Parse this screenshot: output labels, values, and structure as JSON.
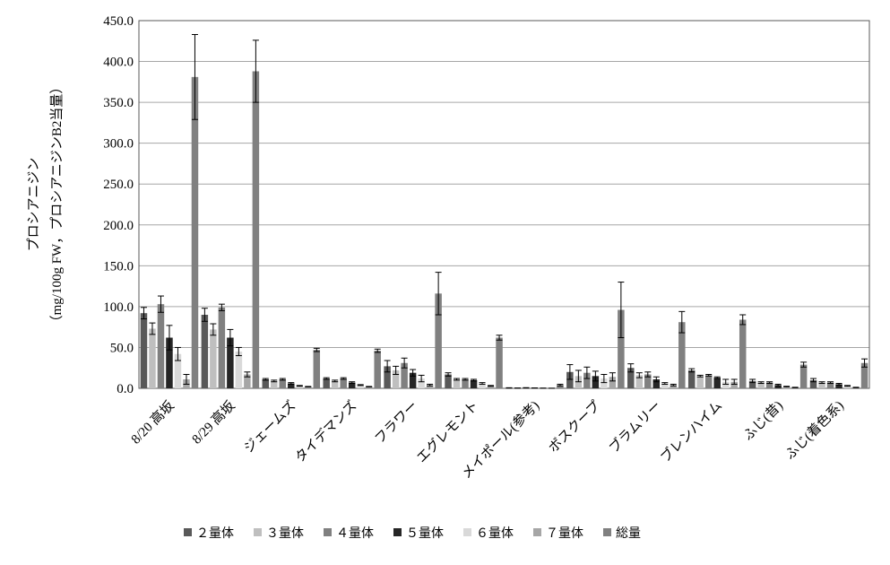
{
  "chart_data": {
    "type": "bar",
    "y_label": [
      "プロシアニジン",
      "（mg/100g FW，プロシアニジンB2当量）"
    ],
    "categories": [
      "8/20 高坂",
      "8/29 高坂",
      "ジェームズ",
      "タイデマンズ",
      "フラワー",
      "エグレモント",
      "メイポール(参考)",
      "ボスクープ",
      "ブラムリー",
      "ブレンハイム",
      "ふじ(昔)",
      "ふじ(着色系)"
    ],
    "series": [
      {
        "name": "２量体",
        "color": "#595959",
        "values": [
          92,
          90,
          11,
          12,
          27,
          17,
          0.5,
          20,
          25,
          22,
          9,
          10
        ],
        "errors": [
          7,
          8,
          1,
          1,
          7,
          2,
          0.2,
          9,
          5,
          2,
          2,
          2
        ]
      },
      {
        "name": "３量体",
        "color": "#bfbfbf",
        "values": [
          73,
          72,
          9,
          9,
          22,
          11,
          0.3,
          15,
          16,
          15,
          7,
          7
        ],
        "errors": [
          7,
          7,
          1,
          1,
          5,
          1,
          0.1,
          7,
          3,
          1,
          1,
          1
        ]
      },
      {
        "name": "４量体",
        "color": "#808080",
        "values": [
          103,
          99,
          11,
          12,
          31,
          11,
          0.6,
          19,
          17,
          16,
          7,
          7
        ],
        "errors": [
          10,
          4,
          1,
          1,
          6,
          1,
          0.2,
          7,
          3,
          1,
          1,
          1
        ]
      },
      {
        "name": "５量体",
        "color": "#262626",
        "values": [
          62,
          62,
          6,
          7,
          19,
          10,
          0.4,
          15,
          11,
          13,
          4,
          5
        ],
        "errors": [
          15,
          10,
          1,
          1,
          4,
          1,
          0.1,
          6,
          3,
          1,
          1,
          1
        ]
      },
      {
        "name": "６量体",
        "color": "#d9d9d9",
        "values": [
          42,
          45,
          3,
          4,
          12,
          6,
          0.2,
          12,
          6,
          8,
          2,
          3
        ],
        "errors": [
          8,
          5,
          0.5,
          0.5,
          4,
          1,
          0.1,
          5,
          1,
          3,
          0.5,
          0.5
        ]
      },
      {
        "name": "７量体",
        "color": "#a6a6a6",
        "values": [
          11,
          17,
          2,
          2,
          4,
          3,
          0.1,
          14,
          4,
          8,
          1,
          1
        ],
        "errors": [
          6,
          3,
          0.3,
          0.3,
          1,
          0.5,
          0.1,
          5,
          1,
          3,
          0.3,
          0.3
        ]
      },
      {
        "name": "総量",
        "color": "#808080",
        "values": [
          381,
          388,
          47,
          46,
          116,
          62,
          4,
          96,
          81,
          84,
          29,
          31
        ],
        "errors": [
          52,
          38,
          2,
          2,
          26,
          3,
          1,
          34,
          13,
          6,
          3,
          5
        ]
      }
    ],
    "ylim": [
      0,
      450
    ],
    "yticks": [
      {
        "value": 0,
        "label": "0.0"
      },
      {
        "value": 50,
        "label": "50.0"
      },
      {
        "value": 100,
        "label": "100.0"
      },
      {
        "value": 150,
        "label": "150.0"
      },
      {
        "value": 200,
        "label": "200.0"
      },
      {
        "value": 250,
        "label": "250.0"
      },
      {
        "value": 300,
        "label": "300.0"
      },
      {
        "value": 350,
        "label": "350.0"
      },
      {
        "value": 400,
        "label": "400.0"
      },
      {
        "value": 450,
        "label": "450.0"
      }
    ],
    "grid": true
  }
}
